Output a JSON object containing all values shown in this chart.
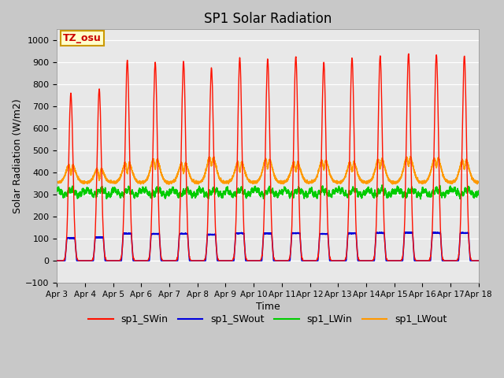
{
  "title": "SP1 Solar Radiation",
  "xlabel": "Time",
  "ylabel": "Solar Radiation (W/m2)",
  "ylim": [
    -100,
    1050
  ],
  "fig_bg": "#c8c8c8",
  "plot_bg": "#e8e8e8",
  "series": {
    "sp1_SWin": {
      "color": "#ff1100",
      "lw": 1.0
    },
    "sp1_SWout": {
      "color": "#0000dd",
      "lw": 1.2
    },
    "sp1_LWin": {
      "color": "#00cc00",
      "lw": 1.2
    },
    "sp1_LWout": {
      "color": "#ff9900",
      "lw": 1.2
    }
  },
  "tz_label": "TZ_osu",
  "tz_bg": "#ffffcc",
  "tz_border": "#cc9900",
  "tz_text_color": "#cc0000",
  "tick_labels": [
    "Apr 3",
    "Apr 4",
    "Apr 5",
    "Apr 6",
    "Apr 7",
    "Apr 8",
    "Apr 9",
    "Apr 10",
    "Apr 11",
    "Apr 12",
    "Apr 13",
    "Apr 14",
    "Apr 15",
    "Apr 16",
    "Apr 17",
    "Apr 18"
  ],
  "num_days": 15,
  "pts_per_day": 288
}
